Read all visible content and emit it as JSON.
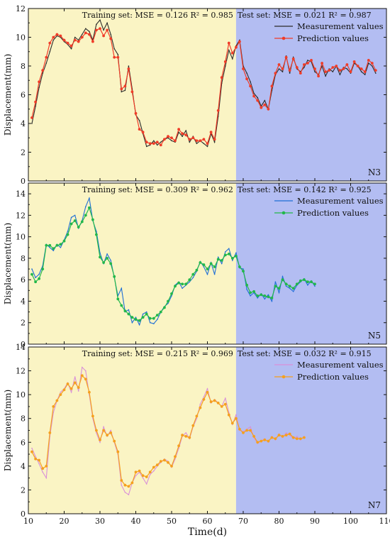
{
  "chart_data": [
    {
      "type": "line",
      "panel_label": "N3",
      "ylabel": "Displacement(mm)",
      "xlim": [
        10,
        110
      ],
      "ylim": [
        0,
        12
      ],
      "x_ticks": [
        "10",
        "20",
        "30",
        "40",
        "50",
        "60",
        "70",
        "80",
        "90",
        "100",
        "110"
      ],
      "y_ticks": [
        "0",
        "2",
        "4",
        "6",
        "8",
        "10",
        "12"
      ],
      "train_test_split": 68,
      "train_text": "Training set: MSE = 0.126  R² = 0.985",
      "test_text": "Test set: MSE = 0.021  R² = 0.987",
      "region_colors": {
        "train": "#faf4c4",
        "test": "#b3bdf2"
      },
      "series": [
        {
          "name": "Measurement values",
          "color": "#2b2b2b",
          "marker": "none",
          "values": [
            4.0,
            5.2,
            6.5,
            7.5,
            8.2,
            9.0,
            9.8,
            10.1,
            10.0,
            9.7,
            9.5,
            9.2,
            10.0,
            9.8,
            10.2,
            10.6,
            10.4,
            9.8,
            10.9,
            11.2,
            10.5,
            11.0,
            10.2,
            9.2,
            8.8,
            6.2,
            6.3,
            8.0,
            6.4,
            4.6,
            4.2,
            3.3,
            2.4,
            2.5,
            2.8,
            2.5,
            2.7,
            2.9,
            3.0,
            2.8,
            2.7,
            3.4,
            3.1,
            3.5,
            2.7,
            3.1,
            2.6,
            2.8,
            2.6,
            2.4,
            3.3,
            2.7,
            4.5,
            6.8,
            8.0,
            9.1,
            8.5,
            9.4,
            9.8,
            8.0,
            7.5,
            6.9,
            6.1,
            5.8,
            5.2,
            5.6,
            5.0,
            6.3,
            7.4,
            7.8,
            7.6,
            8.7,
            7.5,
            8.6,
            7.8,
            7.6,
            7.9,
            8.4,
            8.3,
            7.6,
            7.4,
            8.0,
            7.3,
            7.8,
            7.6,
            8.0,
            7.4,
            7.9,
            7.8,
            7.5,
            8.2,
            8.0,
            7.6,
            7.4,
            8.2,
            8.0,
            7.5
          ]
        },
        {
          "name": "Prediction  values",
          "color": "#f03c28",
          "marker": "circle",
          "values": [
            4.4,
            5.5,
            6.9,
            7.7,
            8.6,
            9.6,
            10.0,
            10.2,
            10.1,
            9.8,
            9.6,
            9.4,
            9.8,
            9.7,
            10.0,
            10.3,
            10.2,
            9.7,
            10.5,
            10.6,
            10.1,
            10.5,
            9.9,
            8.6,
            8.6,
            6.4,
            6.6,
            7.8,
            6.2,
            4.7,
            3.6,
            3.4,
            2.7,
            2.6,
            2.6,
            2.7,
            2.5,
            2.9,
            3.1,
            3.0,
            2.8,
            3.6,
            3.3,
            3.2,
            2.9,
            3.0,
            2.8,
            2.8,
            2.9,
            2.6,
            3.4,
            2.9,
            4.9,
            7.2,
            8.3,
            9.6,
            8.9,
            9.3,
            9.7,
            7.8,
            7.1,
            6.6,
            5.9,
            5.6,
            5.1,
            5.3,
            5.0,
            6.6,
            7.5,
            8.1,
            7.8,
            8.6,
            7.7,
            8.5,
            7.9,
            7.5,
            8.1,
            8.2,
            8.4,
            7.8,
            7.3,
            8.2,
            7.6,
            7.7,
            7.9,
            8.0,
            7.7,
            7.8,
            8.1,
            7.6,
            8.3,
            8.0,
            7.8,
            7.6,
            8.4,
            8.2,
            7.7
          ]
        }
      ]
    },
    {
      "type": "line",
      "panel_label": "N5",
      "ylabel": "Displacement(mm)",
      "xlim": [
        10,
        110
      ],
      "ylim": [
        0,
        15
      ],
      "x_ticks": [
        "10",
        "20",
        "30",
        "40",
        "50",
        "60",
        "70",
        "80",
        "90",
        "100",
        "110"
      ],
      "y_ticks": [
        "0",
        "2",
        "4",
        "6",
        "8",
        "10",
        "12",
        "14"
      ],
      "train_test_split": 68,
      "train_text": "Training set: MSE = 0.309  R² = 0.962",
      "test_text": "Test set: MSE = 0.142  R² = 0.925",
      "region_colors": {
        "train": "#faf4c4",
        "test": "#b3bdf2"
      },
      "series": [
        {
          "name": "Measurement values",
          "color": "#1f6fd6",
          "marker": "none",
          "values": [
            7.0,
            6.2,
            6.5,
            7.3,
            9.3,
            9.0,
            8.7,
            9.3,
            9.0,
            9.7,
            10.5,
            11.8,
            12.0,
            10.8,
            11.5,
            12.8,
            13.6,
            11.5,
            10.5,
            8.5,
            7.5,
            8.4,
            7.8,
            6.2,
            4.5,
            5.2,
            3.0,
            3.2,
            2.0,
            2.5,
            1.8,
            2.8,
            3.0,
            2.0,
            1.9,
            2.3,
            3.0,
            3.5,
            3.8,
            4.5,
            5.5,
            5.8,
            5.2,
            5.5,
            5.8,
            6.2,
            6.8,
            7.7,
            7.2,
            6.5,
            7.6,
            6.5,
            8.1,
            7.5,
            8.6,
            8.9,
            7.8,
            8.5,
            7.1,
            7.0,
            5.1,
            4.5,
            4.8,
            4.3,
            4.7,
            4.2,
            4.6,
            4.0,
            5.8,
            4.8,
            6.3,
            5.4,
            5.2,
            4.9,
            5.5,
            5.8,
            6.1,
            5.5,
            5.9,
            5.4
          ]
        },
        {
          "name": "Prediction  values",
          "color": "#22b84a",
          "marker": "circle",
          "values": [
            6.5,
            5.8,
            6.1,
            7.0,
            9.2,
            9.2,
            8.9,
            9.2,
            9.3,
            9.6,
            10.2,
            11.2,
            11.5,
            10.9,
            11.4,
            12.0,
            12.7,
            11.6,
            10.2,
            8.1,
            7.6,
            8.0,
            7.5,
            6.3,
            4.2,
            3.6,
            3.1,
            2.8,
            2.5,
            2.3,
            2.2,
            2.5,
            2.8,
            2.4,
            2.4,
            2.7,
            3.0,
            3.4,
            4.0,
            4.7,
            5.4,
            5.7,
            5.6,
            5.6,
            6.0,
            6.5,
            6.9,
            7.6,
            7.4,
            7.0,
            7.5,
            7.2,
            7.9,
            7.8,
            8.3,
            8.4,
            8.0,
            8.2,
            7.2,
            6.8,
            5.5,
            4.8,
            4.9,
            4.5,
            4.6,
            4.5,
            4.4,
            4.3,
            5.4,
            5.2,
            6.0,
            5.6,
            5.4,
            5.2,
            5.6,
            5.9,
            6.0,
            5.8,
            5.8,
            5.6
          ]
        }
      ]
    },
    {
      "type": "line",
      "panel_label": "N7",
      "ylabel": "Displacement(mm)",
      "xlabel": "Time(d)",
      "xlim": [
        10,
        110
      ],
      "ylim": [
        0,
        14
      ],
      "x_ticks": [
        "10",
        "20",
        "30",
        "40",
        "50",
        "60",
        "70",
        "80",
        "90",
        "100",
        "110"
      ],
      "y_ticks": [
        "0",
        "2",
        "4",
        "6",
        "8",
        "10",
        "12",
        "14"
      ],
      "train_test_split": 68,
      "train_text": "Training set: MSE = 0.215  R² = 0.969",
      "test_text": "Test set: MSE = 0.032  R² = 0.915",
      "region_colors": {
        "train": "#faf4c4",
        "test": "#b3bdf2"
      },
      "series": [
        {
          "name": "Measurement values",
          "color": "#d990d8",
          "marker": "none",
          "values": [
            5.5,
            4.8,
            4.2,
            3.5,
            3.0,
            6.5,
            8.5,
            9.5,
            10.2,
            10.5,
            11.0,
            10.2,
            11.5,
            10.3,
            12.3,
            12.0,
            10.0,
            8.0,
            6.8,
            6.0,
            7.3,
            6.5,
            7.0,
            6.0,
            5.0,
            2.4,
            1.8,
            1.6,
            2.6,
            3.2,
            3.5,
            3.0,
            2.5,
            3.3,
            3.6,
            4.0,
            4.3,
            4.6,
            4.4,
            3.9,
            4.6,
            5.5,
            6.5,
            6.8,
            6.3,
            7.3,
            8.0,
            9.2,
            9.8,
            10.5,
            9.3,
            9.6,
            9.3,
            9.0,
            9.7,
            8.5,
            7.5,
            8.3,
            7.0,
            6.9,
            7.1,
            7.3,
            6.4,
            5.9,
            6.1,
            6.3,
            6.0,
            6.5,
            6.2,
            6.7,
            6.4,
            6.8,
            6.6,
            6.3,
            6.5,
            6.2,
            6.5
          ]
        },
        {
          "name": "Prediction  values",
          "color": "#f5a01e",
          "marker": "circle",
          "values": [
            5.2,
            4.6,
            4.5,
            3.8,
            4.0,
            6.8,
            9.0,
            9.5,
            10.0,
            10.4,
            10.9,
            10.5,
            11.0,
            10.6,
            11.6,
            11.3,
            10.2,
            8.2,
            7.0,
            6.2,
            7.0,
            6.6,
            6.8,
            6.1,
            5.2,
            2.8,
            2.4,
            2.3,
            2.6,
            3.5,
            3.6,
            3.2,
            3.1,
            3.5,
            3.9,
            4.1,
            4.4,
            4.5,
            4.3,
            4.0,
            4.8,
            5.7,
            6.6,
            6.5,
            6.4,
            7.4,
            8.2,
            8.9,
            9.6,
            10.2,
            9.4,
            9.5,
            9.3,
            9.0,
            9.2,
            8.3,
            7.6,
            8.0,
            7.1,
            6.8,
            7.0,
            7.0,
            6.5,
            6.0,
            6.1,
            6.2,
            6.1,
            6.4,
            6.3,
            6.6,
            6.5,
            6.6,
            6.7,
            6.4,
            6.3,
            6.3,
            6.4
          ]
        }
      ]
    }
  ]
}
